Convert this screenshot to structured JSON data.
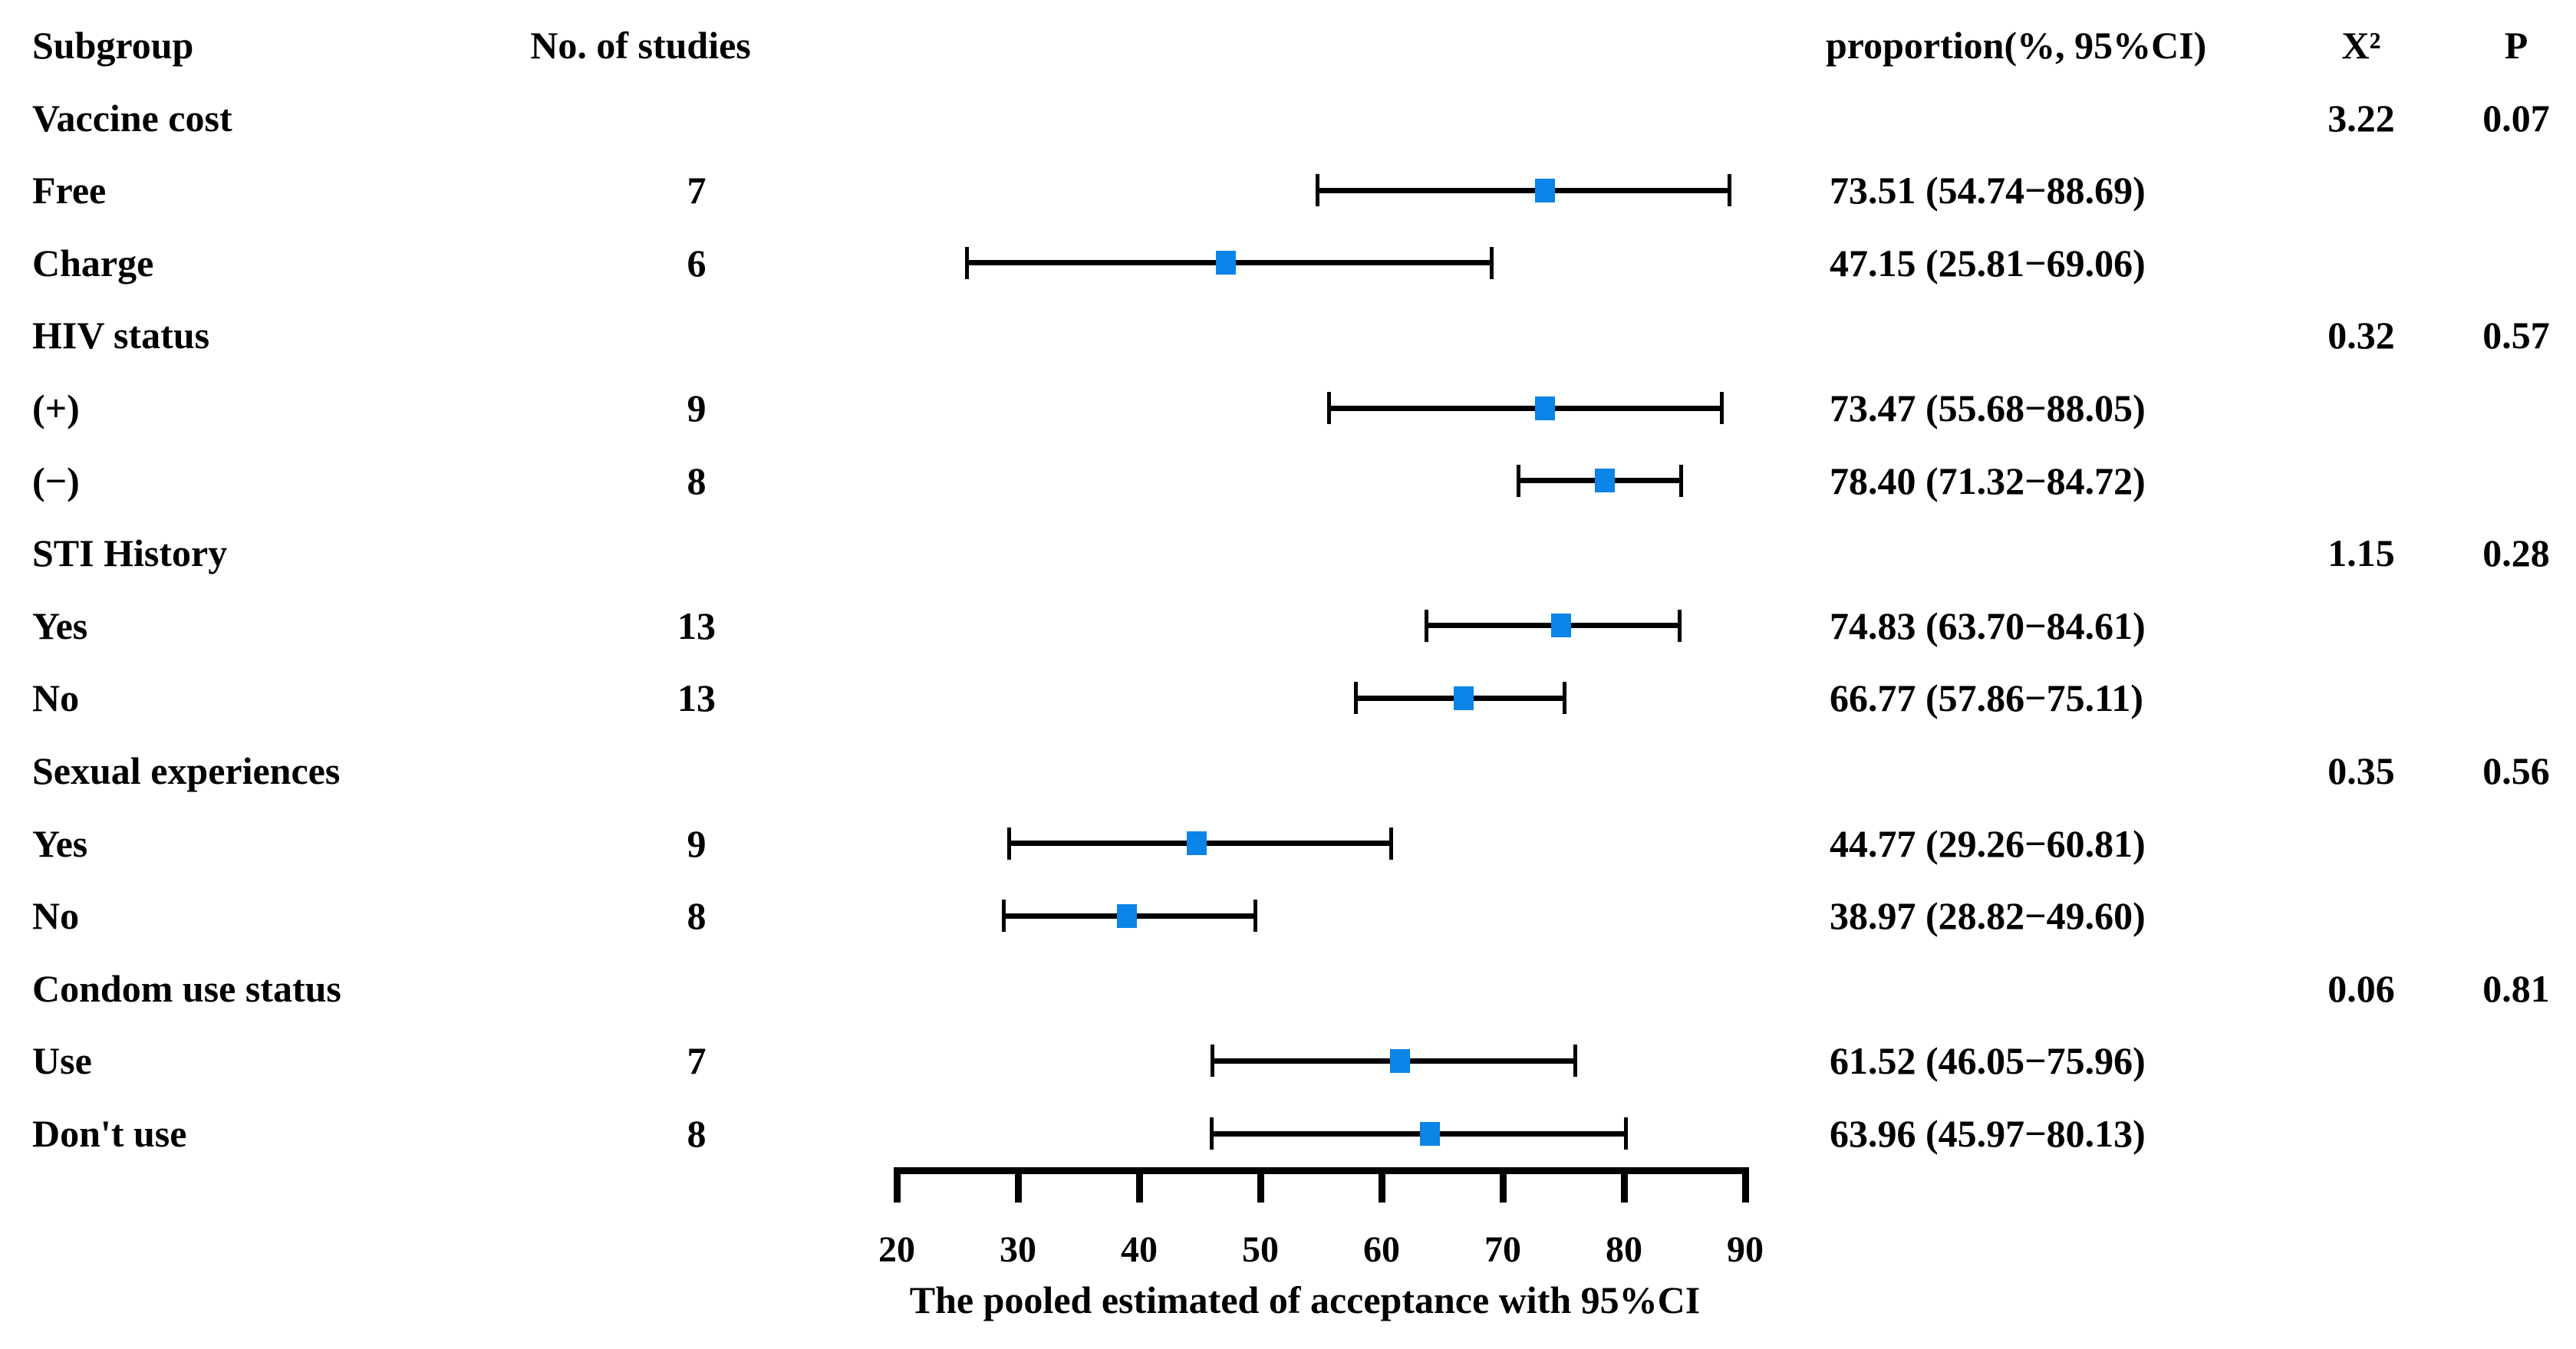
{
  "header": {
    "subgroup": "Subgroup",
    "studies": "No. of studies",
    "proportion": "proportion(%, 95%CI)",
    "chi2": "X²",
    "p": "P"
  },
  "chart_data": {
    "type": "forest",
    "title": "",
    "marker_color": "#0b84e8",
    "line_color": "#000000",
    "axis": {
      "min": 20,
      "max": 90,
      "ticks": [
        20,
        30,
        40,
        50,
        60,
        70,
        80,
        90
      ],
      "label": "The pooled estimated of acceptance with 95%CI"
    },
    "columns": [
      "Subgroup",
      "No. of studies",
      "proportion(%, 95%CI)",
      "X²",
      "P"
    ],
    "rows": [
      {
        "type": "group",
        "label": "Vaccine cost",
        "chi2": "3.22",
        "p": "0.07"
      },
      {
        "type": "item",
        "label": "Free",
        "n": "7",
        "est": 73.51,
        "lo": 54.74,
        "hi": 88.69,
        "text": "73.51 (54.74−88.69)"
      },
      {
        "type": "item",
        "label": "Charge",
        "n": "6",
        "est": 47.15,
        "lo": 25.81,
        "hi": 69.06,
        "text": "47.15 (25.81−69.06)"
      },
      {
        "type": "group",
        "label": "HIV status",
        "chi2": "0.32",
        "p": "0.57"
      },
      {
        "type": "item",
        "label": "(+)",
        "n": "9",
        "est": 73.47,
        "lo": 55.68,
        "hi": 88.05,
        "text": "73.47 (55.68−88.05)"
      },
      {
        "type": "item",
        "label": "(−)",
        "n": "8",
        "est": 78.4,
        "lo": 71.32,
        "hi": 84.72,
        "text": "78.40 (71.32−84.72)"
      },
      {
        "type": "group",
        "label": "STI History",
        "chi2": "1.15",
        "p": "0.28"
      },
      {
        "type": "item",
        "label": "Yes",
        "n": "13",
        "est": 74.83,
        "lo": 63.7,
        "hi": 84.61,
        "text": "74.83 (63.70−84.61)"
      },
      {
        "type": "item",
        "label": "No",
        "n": "13",
        "est": 66.77,
        "lo": 57.86,
        "hi": 75.11,
        "text": "66.77 (57.86−75.11)"
      },
      {
        "type": "group",
        "label": "Sexual experiences",
        "chi2": "0.35",
        "p": "0.56"
      },
      {
        "type": "item",
        "label": "Yes",
        "n": "9",
        "est": 44.77,
        "lo": 29.26,
        "hi": 60.81,
        "text": "44.77 (29.26−60.81)"
      },
      {
        "type": "item",
        "label": "No",
        "n": "8",
        "est": 38.97,
        "lo": 28.82,
        "hi": 49.6,
        "text": "38.97 (28.82−49.60)"
      },
      {
        "type": "group",
        "label": "Condom use status",
        "chi2": "0.06",
        "p": "0.81"
      },
      {
        "type": "item",
        "label": "Use",
        "n": "7",
        "est": 61.52,
        "lo": 46.05,
        "hi": 75.96,
        "text": "61.52 (46.05−75.96)"
      },
      {
        "type": "item",
        "label": "Don't use",
        "n": "8",
        "est": 63.96,
        "lo": 45.97,
        "hi": 80.13,
        "text": "63.96 (45.97−80.13)"
      }
    ]
  }
}
